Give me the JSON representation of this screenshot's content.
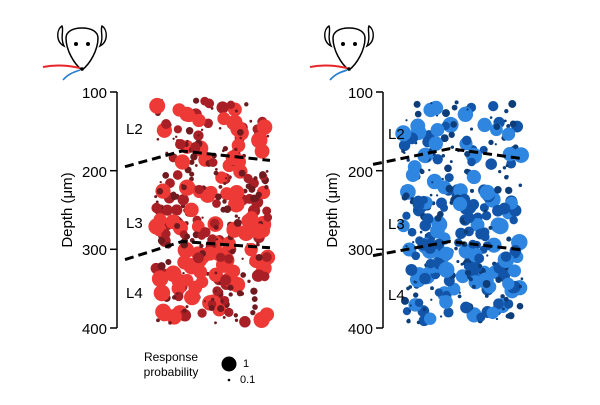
{
  "chart_data": [
    {
      "type": "scatter",
      "panel": "left",
      "ylabel": "Depth (μm)",
      "yticks": [
        "100",
        "200",
        "300",
        "400"
      ],
      "ylim": [
        100,
        400
      ],
      "y_inverted": true,
      "layer_labels": [
        "L2",
        "L3",
        "L4"
      ],
      "layer_boundaries": [
        {
          "between": "L2-L3",
          "depth_left": 195,
          "depth_peak": 175,
          "depth_right": 187
        },
        {
          "between": "L3-L4",
          "depth_left": 313,
          "depth_peak": 290,
          "depth_right": 298
        }
      ],
      "size_encodes": "Response probability",
      "response_probability_range": [
        0.1,
        1
      ],
      "whisker_stimulus_color": "#e8262a",
      "colors": {
        "low": "#6e1a1e",
        "mid": "#a82026",
        "high": "#ee3a36"
      },
      "seed": 11
    },
    {
      "type": "scatter",
      "panel": "right",
      "ylabel": "Depth (μm)",
      "yticks": [
        "100",
        "200",
        "300",
        "400"
      ],
      "ylim": [
        100,
        400
      ],
      "y_inverted": true,
      "layer_labels": [
        "L2",
        "L3",
        "L4"
      ],
      "layer_boundaries": [
        {
          "between": "L2-L3",
          "depth_left": 192,
          "depth_peak": 172,
          "depth_right": 185
        },
        {
          "between": "L3-L4",
          "depth_left": 308,
          "depth_peak": 290,
          "depth_right": 301
        }
      ],
      "size_encodes": "Response probability",
      "response_probability_range": [
        0.1,
        1
      ],
      "whisker_stimulus_color": "#2a7fd4",
      "colors": {
        "low": "#0d3e7a",
        "mid": "#1255a8",
        "high": "#2f86e0"
      },
      "seed": 29
    }
  ],
  "legend": {
    "title_line1": "Response",
    "title_line2": "probability",
    "large_label": "1",
    "small_label": "0.1"
  }
}
